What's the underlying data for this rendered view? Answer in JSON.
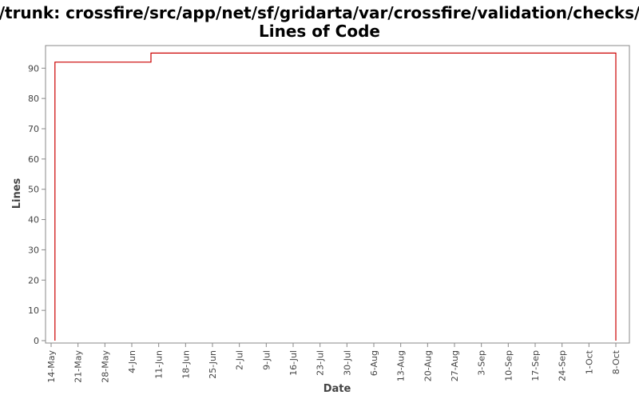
{
  "chart_data": {
    "type": "line",
    "step": true,
    "title": "/trunk: crossfire/src/app/net/sf/gridarta/var/crossfire/validation/checks/",
    "subtitle": "Lines of Code",
    "xlabel": "Date",
    "ylabel": "Lines",
    "x_ticks": [
      "14-May",
      "21-May",
      "28-May",
      "4-Jun",
      "11-Jun",
      "18-Jun",
      "25-Jun",
      "2-Jul",
      "9-Jul",
      "16-Jul",
      "23-Jul",
      "30-Jul",
      "6-Aug",
      "13-Aug",
      "20-Aug",
      "27-Aug",
      "3-Sep",
      "10-Sep",
      "17-Sep",
      "24-Sep",
      "1-Oct",
      "8-Oct"
    ],
    "y_ticks": [
      0,
      10,
      20,
      30,
      40,
      50,
      60,
      70,
      80,
      90
    ],
    "ylim": [
      0,
      98
    ],
    "xlim": [
      "14-May",
      "10-Oct"
    ],
    "grid": false,
    "legend": "none",
    "series": [
      {
        "color": "#cc0000",
        "x": [
          "15-May",
          "15-May",
          "9-Jun",
          "8-Oct"
        ],
        "values": [
          0,
          92,
          95,
          0
        ]
      }
    ]
  }
}
